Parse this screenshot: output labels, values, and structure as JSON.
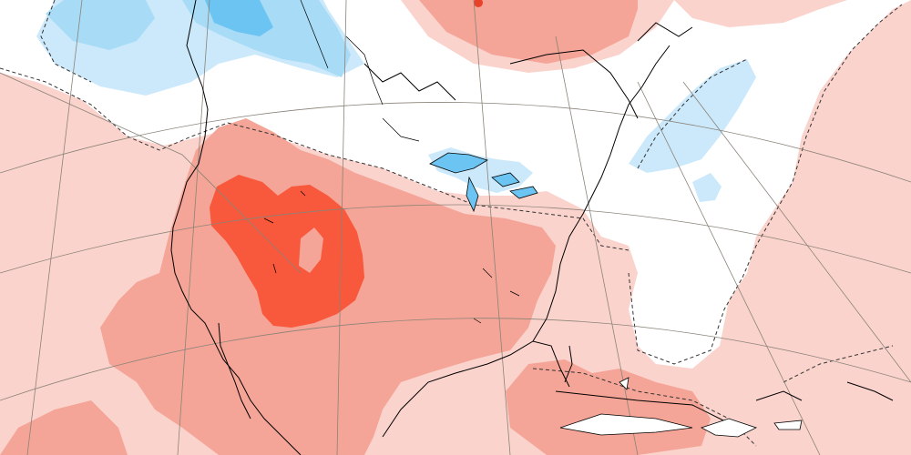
{
  "map": {
    "type": "temperature-anomaly",
    "region": "North America",
    "legend_visible": false,
    "colors": {
      "background": "#ffffff",
      "warm_light": "#fbd3cd",
      "warm_medium": "#f4a597",
      "warm_strong": "#f8583b",
      "warm_dark": "#e8432a",
      "cold_light": "#cbe9fb",
      "cold_medium": "#a8dbf6",
      "cold_strong": "#6cc4f2",
      "coastline": "#000000",
      "graticule": "#8a8378",
      "contour_dashed": "#333333"
    }
  }
}
